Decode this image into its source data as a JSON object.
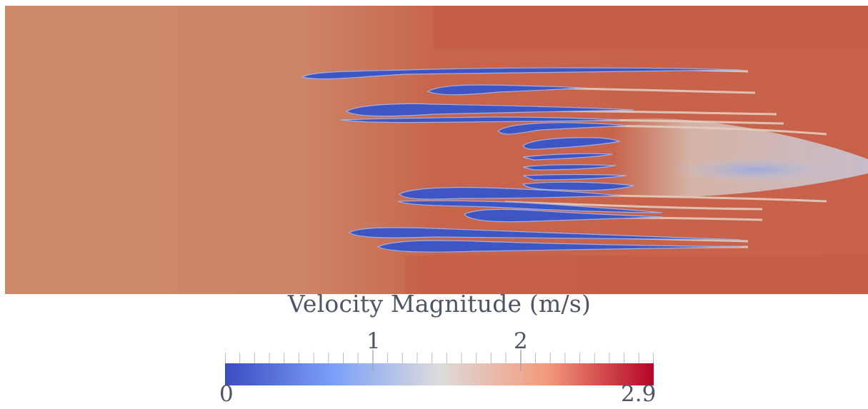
{
  "visualization": {
    "field": "Velocity Magnitude",
    "colormap": "Cool to Warm",
    "colors": {
      "low": "#3b4cc0",
      "mid": "#dddcdc",
      "high": "#b40426",
      "background_flow": "#cd8466",
      "wake": "#c25a44"
    }
  },
  "legend": {
    "title": "Velocity Magnitude (m/s)",
    "min_label": "0",
    "max_label": "2.9",
    "tick_labels": [
      "1",
      "2"
    ],
    "range": [
      0,
      2.9
    ],
    "ticks": [
      1,
      2
    ]
  }
}
